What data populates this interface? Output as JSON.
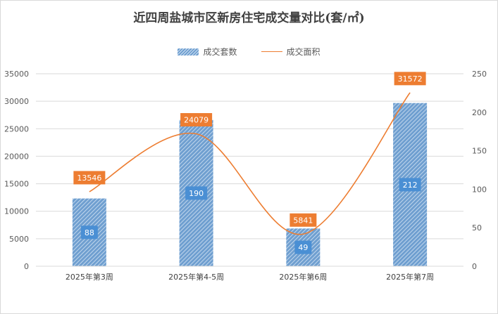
{
  "title": "近四周盐城市区新房住宅成交量对比(套/㎡)",
  "legend": {
    "bar_label": "成交套数",
    "line_label": "成交面积"
  },
  "colors": {
    "bar": "#6f9fd0",
    "bar_label_bg": "#4a8fd4",
    "line": "#ed7d31",
    "line_label_bg": "#ed7d31",
    "grid": "#d9d9d9"
  },
  "chart_data": {
    "type": "bar",
    "title": "近四周盐城市区新房住宅成交量对比(套/㎡)",
    "categories": [
      "2025年第3周",
      "2025年第4-5周",
      "2025年第6周",
      "2025年第7周"
    ],
    "series": [
      {
        "name": "成交套数",
        "type": "bar",
        "axis": "right",
        "values": [
          88,
          190,
          49,
          212
        ]
      },
      {
        "name": "成交面积",
        "type": "line",
        "smooth": true,
        "axis": "left",
        "values": [
          13546,
          24079,
          5841,
          31572
        ]
      }
    ],
    "y_left": {
      "min": 0,
      "max": 35000,
      "ticks": [
        0,
        5000,
        10000,
        15000,
        20000,
        25000,
        30000,
        35000
      ]
    },
    "y_right": {
      "min": 0,
      "max": 250,
      "ticks": [
        0,
        50,
        100,
        150,
        200,
        250
      ]
    },
    "grid": true,
    "legend_position": "top"
  }
}
